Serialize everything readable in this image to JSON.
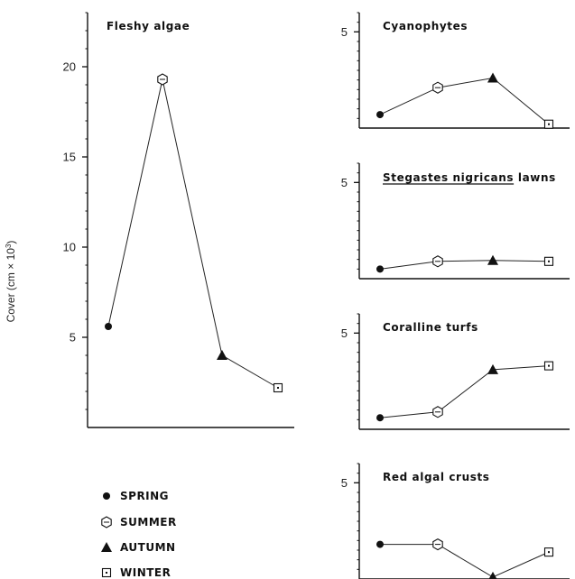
{
  "chart_data": {
    "type": "line",
    "ylabel": "Cover (cm × 10",
    "ylabel_sup": "3",
    "ylabel_close": ")",
    "categories": [
      "SPRING",
      "SUMMER",
      "AUTUMN",
      "WINTER"
    ],
    "markers": [
      "filled-circle",
      "open-hexagon",
      "filled-triangle",
      "open-square-dot"
    ],
    "legend": {
      "placement": "bottom-left",
      "entries": [
        "SPRING",
        "SUMMER",
        "AUTUMN",
        "WINTER"
      ]
    },
    "panels": [
      {
        "title": "Fleshy algae",
        "ylim": [
          0,
          23
        ],
        "yticks": [
          5,
          10,
          15,
          20
        ],
        "values": [
          5.6,
          19.3,
          4.0,
          2.2
        ]
      },
      {
        "title": "Cyanophytes",
        "title_underline": false,
        "ylim": [
          0,
          6
        ],
        "yticks": [
          5
        ],
        "values": [
          0.7,
          2.1,
          2.6,
          0.2
        ]
      },
      {
        "title": "Stegastes nigricans lawns",
        "underlined_part": "Stegastes nigricans",
        "ylim": [
          0,
          6
        ],
        "yticks": [
          5
        ],
        "values": [
          0.5,
          0.9,
          0.95,
          0.9
        ]
      },
      {
        "title": "Coralline turfs",
        "ylim": [
          0,
          6
        ],
        "yticks": [
          5
        ],
        "values": [
          0.6,
          0.9,
          3.1,
          3.3
        ]
      },
      {
        "title": "Red algal crusts",
        "ylim": [
          0,
          6
        ],
        "yticks": [
          5
        ],
        "values": [
          1.8,
          1.8,
          0.1,
          1.4
        ]
      }
    ]
  }
}
